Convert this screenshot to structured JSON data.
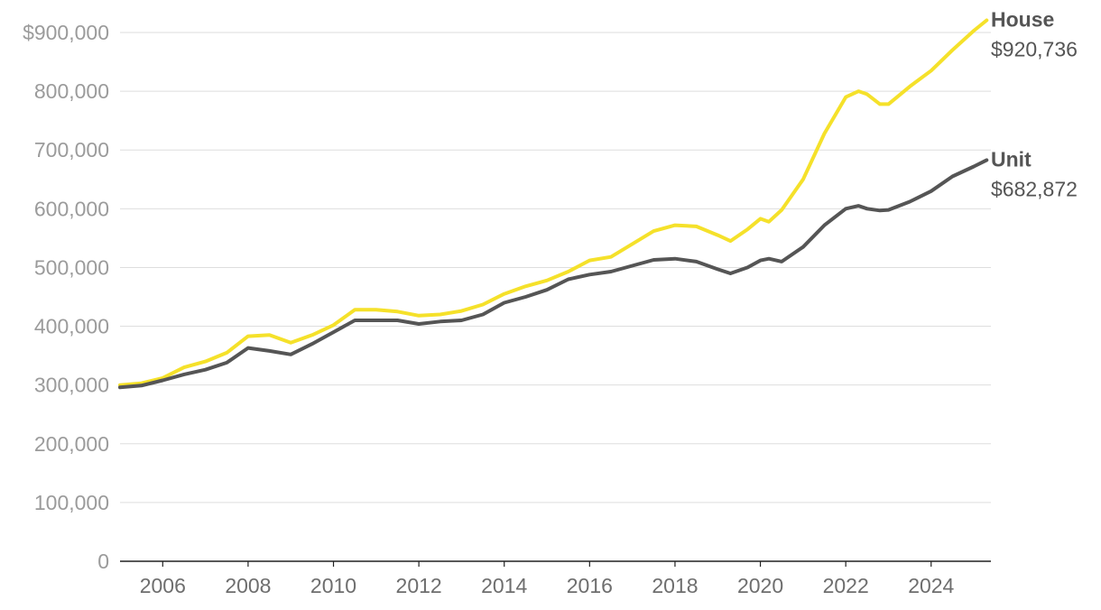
{
  "chart_data": {
    "type": "line",
    "title": "",
    "xlabel": "",
    "ylabel": "",
    "ylim": [
      0,
      900000
    ],
    "xlim": [
      2005,
      2025.4
    ],
    "yticks": [
      {
        "value": 0,
        "label": "0"
      },
      {
        "value": 100000,
        "label": "100,000"
      },
      {
        "value": 200000,
        "label": "200,000"
      },
      {
        "value": 300000,
        "label": "300,000"
      },
      {
        "value": 400000,
        "label": "400,000"
      },
      {
        "value": 500000,
        "label": "500,000"
      },
      {
        "value": 600000,
        "label": "600,000"
      },
      {
        "value": 700000,
        "label": "700,000"
      },
      {
        "value": 800000,
        "label": "800,000"
      },
      {
        "value": 900000,
        "label": "$900,000"
      }
    ],
    "xticks": [
      {
        "value": 2006,
        "label": "2006"
      },
      {
        "value": 2008,
        "label": "2008"
      },
      {
        "value": 2010,
        "label": "2010"
      },
      {
        "value": 2012,
        "label": "2012"
      },
      {
        "value": 2014,
        "label": "2014"
      },
      {
        "value": 2016,
        "label": "2016"
      },
      {
        "value": 2018,
        "label": "2018"
      },
      {
        "value": 2020,
        "label": "2020"
      },
      {
        "value": 2022,
        "label": "2022"
      },
      {
        "value": 2024,
        "label": "2024"
      }
    ],
    "grid": true,
    "legend": "direct labels at line ends (right)",
    "series": [
      {
        "name": "House",
        "color": "#f5e12a",
        "end_label": "$920,736",
        "x": [
          2005.0,
          2005.5,
          2006.0,
          2006.5,
          2007.0,
          2007.5,
          2008.0,
          2008.5,
          2009.0,
          2009.5,
          2010.0,
          2010.5,
          2011.0,
          2011.5,
          2012.0,
          2012.5,
          2013.0,
          2013.5,
          2014.0,
          2014.5,
          2015.0,
          2015.5,
          2016.0,
          2016.5,
          2017.0,
          2017.5,
          2018.0,
          2018.5,
          2019.0,
          2019.3,
          2019.7,
          2020.0,
          2020.2,
          2020.5,
          2021.0,
          2021.5,
          2022.0,
          2022.3,
          2022.5,
          2022.8,
          2023.0,
          2023.5,
          2024.0,
          2024.5,
          2025.0,
          2025.3
        ],
        "values": [
          300000,
          303000,
          312000,
          330000,
          340000,
          355000,
          383000,
          385000,
          372000,
          385000,
          402000,
          428000,
          428000,
          425000,
          418000,
          420000,
          426000,
          437000,
          455000,
          468000,
          478000,
          493000,
          512000,
          518000,
          540000,
          562000,
          572000,
          570000,
          555000,
          545000,
          565000,
          583000,
          578000,
          598000,
          650000,
          728000,
          790000,
          800000,
          795000,
          778000,
          778000,
          808000,
          835000,
          870000,
          903000,
          920736
        ]
      },
      {
        "name": "Unit",
        "color": "#555555",
        "end_label": "$682,872",
        "x": [
          2005.0,
          2005.5,
          2006.0,
          2006.5,
          2007.0,
          2007.5,
          2008.0,
          2008.5,
          2009.0,
          2009.5,
          2010.0,
          2010.5,
          2011.0,
          2011.5,
          2012.0,
          2012.5,
          2013.0,
          2013.5,
          2014.0,
          2014.5,
          2015.0,
          2015.5,
          2016.0,
          2016.5,
          2017.0,
          2017.5,
          2018.0,
          2018.5,
          2019.0,
          2019.3,
          2019.7,
          2020.0,
          2020.2,
          2020.5,
          2021.0,
          2021.5,
          2022.0,
          2022.3,
          2022.5,
          2022.8,
          2023.0,
          2023.5,
          2024.0,
          2024.5,
          2025.0,
          2025.3
        ],
        "values": [
          296000,
          299000,
          308000,
          318000,
          326000,
          338000,
          363000,
          358000,
          352000,
          370000,
          390000,
          410000,
          410000,
          410000,
          404000,
          408000,
          410000,
          420000,
          440000,
          450000,
          462000,
          480000,
          488000,
          493000,
          503000,
          513000,
          515000,
          510000,
          497000,
          490000,
          500000,
          512000,
          515000,
          510000,
          535000,
          572000,
          600000,
          605000,
          600000,
          597000,
          598000,
          612000,
          630000,
          655000,
          672000,
          682872
        ]
      }
    ]
  }
}
